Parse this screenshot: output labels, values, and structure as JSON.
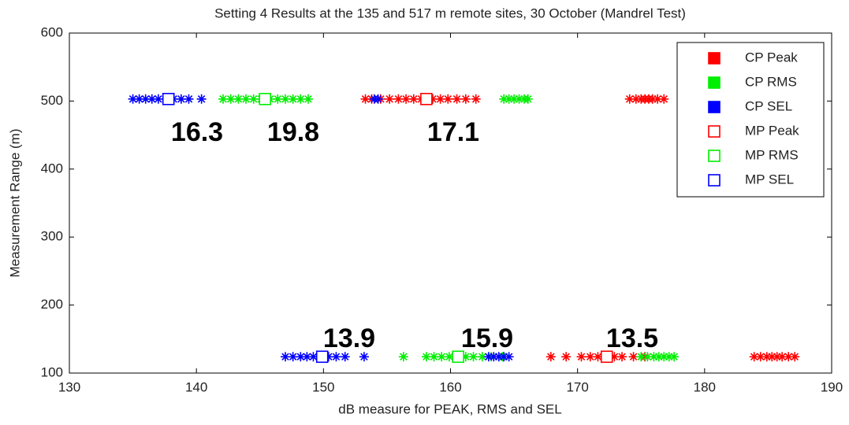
{
  "chart_data": {
    "type": "scatter",
    "title": "Setting 4 Results at the 135 and 517 m remote sites, 30 October (Mandrel Test)",
    "xlabel": "dB measure for PEAK, RMS and SEL",
    "ylabel": "Measurement Range (m)",
    "xlim": [
      130,
      190
    ],
    "xticks": [
      130,
      140,
      150,
      160,
      170,
      180,
      190
    ],
    "ylim": [
      100,
      600
    ],
    "yticks": [
      100,
      200,
      300,
      400,
      500,
      600
    ],
    "legend": "upper right",
    "annotations": [
      "16.3",
      "19.8",
      "17.1",
      "13.9",
      "15.9",
      "13.5"
    ],
    "series": [
      {
        "name": "CP Peak",
        "color": "#ff0000",
        "marker": "*",
        "x": [
          153.3,
          153.8,
          154.5,
          155.2,
          155.9,
          156.5,
          157.1,
          157.7,
          158.6,
          159.2,
          159.8,
          160.5,
          161.2,
          162.0,
          174.1,
          174.6,
          175.0,
          175.3,
          175.6,
          175.9,
          176.3,
          176.8,
          167.9,
          169.1,
          170.3,
          171.0,
          171.6,
          172.2,
          172.9,
          173.5,
          174.4,
          175.3,
          183.9,
          184.4,
          184.9,
          185.3,
          185.7,
          186.1,
          186.6,
          187.1
        ],
        "values": [
          503,
          503,
          503,
          503,
          503,
          503,
          503,
          503,
          503,
          503,
          503,
          503,
          503,
          503,
          503,
          503,
          503,
          503,
          503,
          503,
          503,
          503,
          124,
          124,
          124,
          124,
          124,
          124,
          124,
          124,
          124,
          124,
          124,
          124,
          124,
          124,
          124,
          124,
          124,
          124
        ]
      },
      {
        "name": "CP RMS",
        "color": "#00ee00",
        "marker": "*",
        "x": [
          142.1,
          142.7,
          143.3,
          143.9,
          144.5,
          145.1,
          145.8,
          146.4,
          147.0,
          147.6,
          148.2,
          148.8,
          164.2,
          164.6,
          165.0,
          165.4,
          165.8,
          166.1,
          156.3,
          158.1,
          158.7,
          159.3,
          159.9,
          160.6,
          161.2,
          161.8,
          162.5,
          163.2,
          164.1,
          175.0,
          175.5,
          176.0,
          176.4,
          176.8,
          177.2,
          177.6
        ],
        "values": [
          503,
          503,
          503,
          503,
          503,
          503,
          503,
          503,
          503,
          503,
          503,
          503,
          503,
          503,
          503,
          503,
          503,
          503,
          124,
          124,
          124,
          124,
          124,
          124,
          124,
          124,
          124,
          124,
          124,
          124,
          124,
          124,
          124,
          124,
          124,
          124
        ]
      },
      {
        "name": "CP SEL",
        "color": "#0000ff",
        "marker": "*",
        "x": [
          135.0,
          135.5,
          136.0,
          136.5,
          137.0,
          137.6,
          138.2,
          138.8,
          139.4,
          140.4,
          154.0,
          154.3,
          147.0,
          147.6,
          148.2,
          148.7,
          149.2,
          149.8,
          150.4,
          151.0,
          151.7,
          153.2,
          163.0,
          163.4,
          163.8,
          164.2,
          164.6
        ],
        "values": [
          503,
          503,
          503,
          503,
          503,
          503,
          503,
          503,
          503,
          503,
          503,
          503,
          124,
          124,
          124,
          124,
          124,
          124,
          124,
          124,
          124,
          124,
          124,
          124,
          124,
          124,
          124
        ]
      },
      {
        "name": "MP Peak",
        "color": "#ff0000",
        "marker": "s",
        "x": [
          158.1,
          172.3
        ],
        "values": [
          503,
          124
        ]
      },
      {
        "name": "MP RMS",
        "color": "#00ee00",
        "marker": "s",
        "x": [
          145.4,
          160.6
        ],
        "values": [
          503,
          124
        ]
      },
      {
        "name": "MP SEL",
        "color": "#0000ff",
        "marker": "s",
        "x": [
          137.8,
          149.9
        ],
        "values": [
          503,
          124
        ]
      }
    ]
  }
}
